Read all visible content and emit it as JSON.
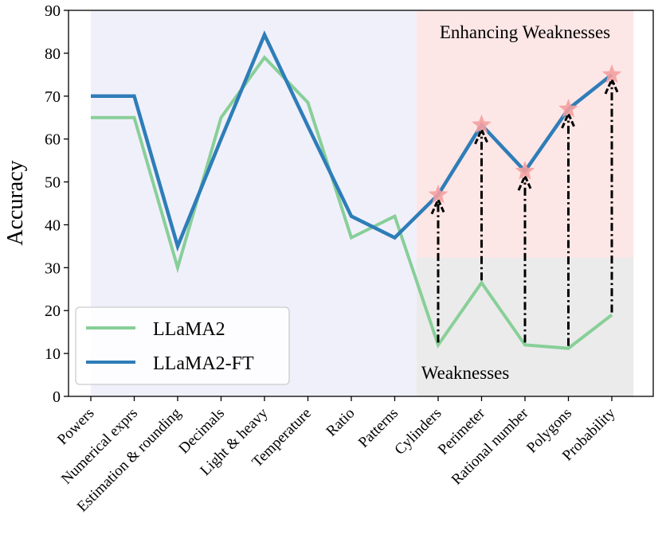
{
  "chart_data": {
    "type": "line",
    "title": "",
    "xlabel": "",
    "ylabel": "Accuracy",
    "ylim": [
      0,
      90
    ],
    "yticks": [
      0,
      10,
      20,
      30,
      40,
      50,
      60,
      70,
      80,
      90
    ],
    "categories": [
      "Powers",
      "Numerical exprs",
      "Estimation & rounding",
      "Decimals",
      "Light & heavy",
      "Temperature",
      "Ratio",
      "Patterns",
      "Cylinders",
      "Perimeter",
      "Rational number",
      "Polygons",
      "Probability"
    ],
    "series": [
      {
        "name": "LLaMA2",
        "color": "#88cf98",
        "values": [
          65,
          65,
          30,
          65,
          79,
          68.5,
          37,
          42,
          12,
          26.5,
          12,
          11.2,
          19
        ]
      },
      {
        "name": "LLaMA2-FT",
        "color": "#2e7db8",
        "values": [
          70,
          70,
          35,
          60,
          84.3,
          63,
          42,
          37,
          47,
          63.3,
          52.5,
          67,
          75
        ]
      }
    ],
    "regions": [
      {
        "name": "background",
        "label": "",
        "x_from": 0,
        "x_to": 7.5,
        "y_from": 0,
        "y_to": 90,
        "color": "#f0f0fb"
      },
      {
        "name": "enhancing-weaknesses",
        "label": "Enhancing Weaknesses",
        "x_from": 7.5,
        "x_to": 12.5,
        "y_from": 32.3,
        "y_to": 90,
        "color": "#fde6e6"
      },
      {
        "name": "weaknesses",
        "label": "Weaknesses",
        "x_from": 7.5,
        "x_to": 12.5,
        "y_from": 0,
        "y_to": 32.3,
        "color": "#ebebeb"
      }
    ],
    "improvement_arrows": [
      {
        "category": "Cylinders",
        "from": 12,
        "to": 47
      },
      {
        "category": "Perimeter",
        "from": 26.5,
        "to": 63.3
      },
      {
        "category": "Rational number",
        "from": 12,
        "to": 52.5
      },
      {
        "category": "Polygons",
        "from": 11.2,
        "to": 67
      },
      {
        "category": "Probability",
        "from": 19,
        "to": 75
      }
    ],
    "star_marker_color": "#f4a0a0",
    "legend": {
      "position": "lower-left",
      "entries": [
        "LLaMA2",
        "LLaMA2-FT"
      ]
    }
  }
}
